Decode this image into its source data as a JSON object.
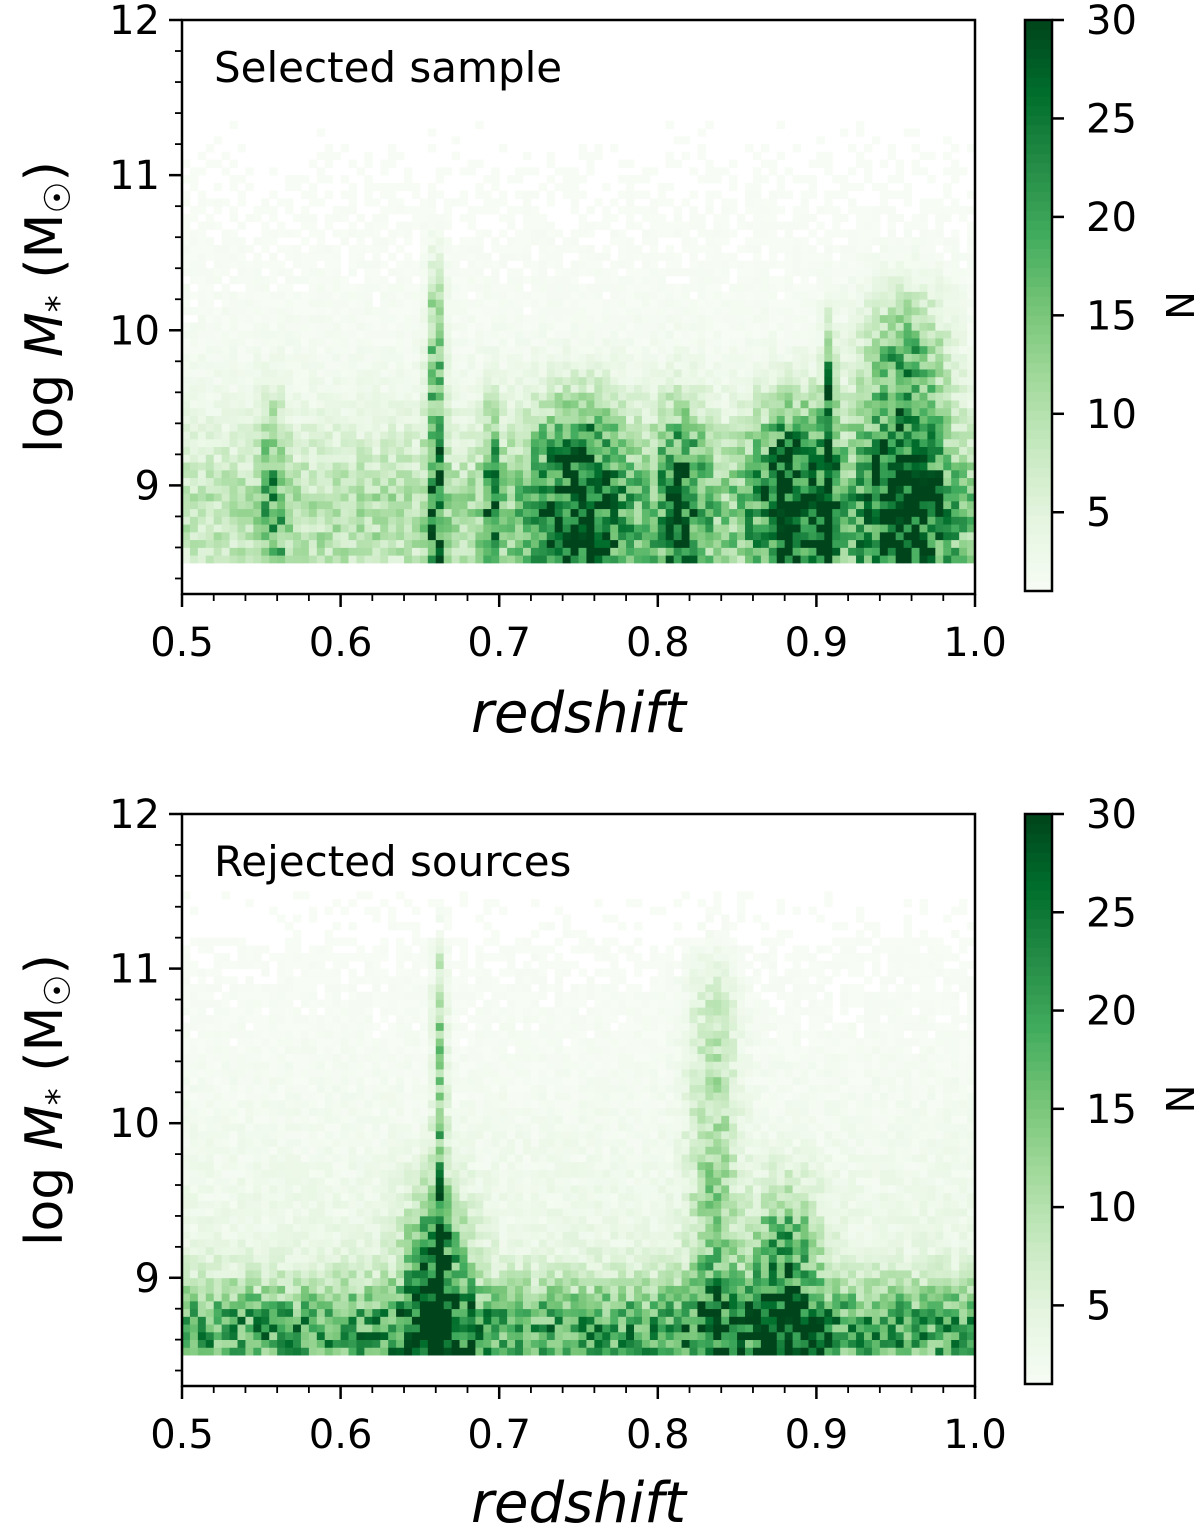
{
  "chart_data": [
    {
      "type": "heatmap",
      "annotation": "Selected sample",
      "xlabel": "redshift",
      "ylabel_prefix": "log ",
      "ylabel_var": "M",
      "ylabel_sub": "*",
      "ylabel_unit": " (M",
      "ylabel_sun": "☉",
      "ylabel_close": ")",
      "xlim": [
        0.5,
        1.0
      ],
      "ylim": [
        8.3,
        12.0
      ],
      "xticks": [
        0.5,
        0.6,
        0.7,
        0.8,
        0.9,
        1.0
      ],
      "xtick_labels": [
        "0.5",
        "0.6",
        "0.7",
        "0.8",
        "0.9",
        "1.0"
      ],
      "yticks": [
        9,
        10,
        11,
        12
      ],
      "ytick_labels": [
        "9",
        "10",
        "11",
        "12"
      ],
      "colorbar": {
        "label": "N",
        "range": [
          1,
          30
        ],
        "ticks": [
          5,
          10,
          15,
          20,
          25,
          30
        ],
        "tick_labels": [
          "5",
          "10",
          "15",
          "20",
          "25",
          "30"
        ],
        "colormap": "Greens",
        "colors": [
          "#f7fcf5",
          "#e5f5e0",
          "#c7e9c0",
          "#a1d99b",
          "#74c476",
          "#41ab5d",
          "#238b45",
          "#006d2c",
          "#00441b"
        ]
      },
      "bins": {
        "x_range": [
          0.5,
          1.0
        ],
        "x_bins": 100,
        "y_range": [
          8.5,
          12.0
        ],
        "y_bins": 70
      },
      "mass_floor": 8.5,
      "density_features": {
        "low_mass_peak": 8.8,
        "background_level": 3,
        "redshift_enhancements": [
          {
            "z_range": [
              0.55,
              0.565
            ],
            "peak": 15
          },
          {
            "z_range": [
              0.655,
              0.665
            ],
            "peak": 26,
            "mass_max": 10.2
          },
          {
            "z_range": [
              0.69,
              0.7
            ],
            "peak": 18
          },
          {
            "z_range": [
              0.72,
              0.78
            ],
            "peak": 26
          },
          {
            "z_range": [
              0.8,
              0.83
            ],
            "peak": 20
          },
          {
            "z_range": [
              0.86,
              0.91
            ],
            "peak": 25
          },
          {
            "z_range": [
              0.905,
              0.91
            ],
            "peak": 28,
            "mass_max": 9.8
          },
          {
            "z_range": [
              0.93,
              0.98
            ],
            "peak": 29,
            "mass_max": 10.0
          }
        ]
      }
    },
    {
      "type": "heatmap",
      "annotation": "Rejected sources",
      "xlabel": "redshift",
      "ylabel_prefix": "log ",
      "ylabel_var": "M",
      "ylabel_sub": "*",
      "ylabel_unit": " (M",
      "ylabel_sun": "☉",
      "ylabel_close": ")",
      "xlim": [
        0.5,
        1.0
      ],
      "ylim": [
        8.3,
        12.0
      ],
      "xticks": [
        0.5,
        0.6,
        0.7,
        0.8,
        0.9,
        1.0
      ],
      "xtick_labels": [
        "0.5",
        "0.6",
        "0.7",
        "0.8",
        "0.9",
        "1.0"
      ],
      "yticks": [
        9,
        10,
        11,
        12
      ],
      "ytick_labels": [
        "9",
        "10",
        "11",
        "12"
      ],
      "colorbar": {
        "label": "N",
        "range": [
          1,
          30
        ],
        "ticks": [
          5,
          10,
          15,
          20,
          25,
          30
        ],
        "tick_labels": [
          "5",
          "10",
          "15",
          "20",
          "25",
          "30"
        ],
        "colormap": "Greens",
        "colors": [
          "#f7fcf5",
          "#e5f5e0",
          "#c7e9c0",
          "#a1d99b",
          "#74c476",
          "#41ab5d",
          "#238b45",
          "#006d2c",
          "#00441b"
        ]
      },
      "bins": {
        "x_range": [
          0.5,
          1.0
        ],
        "x_bins": 100,
        "y_range": [
          8.5,
          12.0
        ],
        "y_bins": 70
      },
      "mass_floor": 8.5,
      "density_features": {
        "low_mass_peak": 8.65,
        "background_level": 4,
        "redshift_enhancements": [
          {
            "z_range": [
              0.64,
              0.68
            ],
            "peak": 26
          },
          {
            "z_range": [
              0.66,
              0.665
            ],
            "peak": 20,
            "mass_max": 10.9
          },
          {
            "z_range": [
              0.82,
              0.85
            ],
            "peak": 14,
            "mass_max": 10.8
          },
          {
            "z_range": [
              0.86,
              0.9
            ],
            "peak": 24
          }
        ]
      }
    }
  ]
}
